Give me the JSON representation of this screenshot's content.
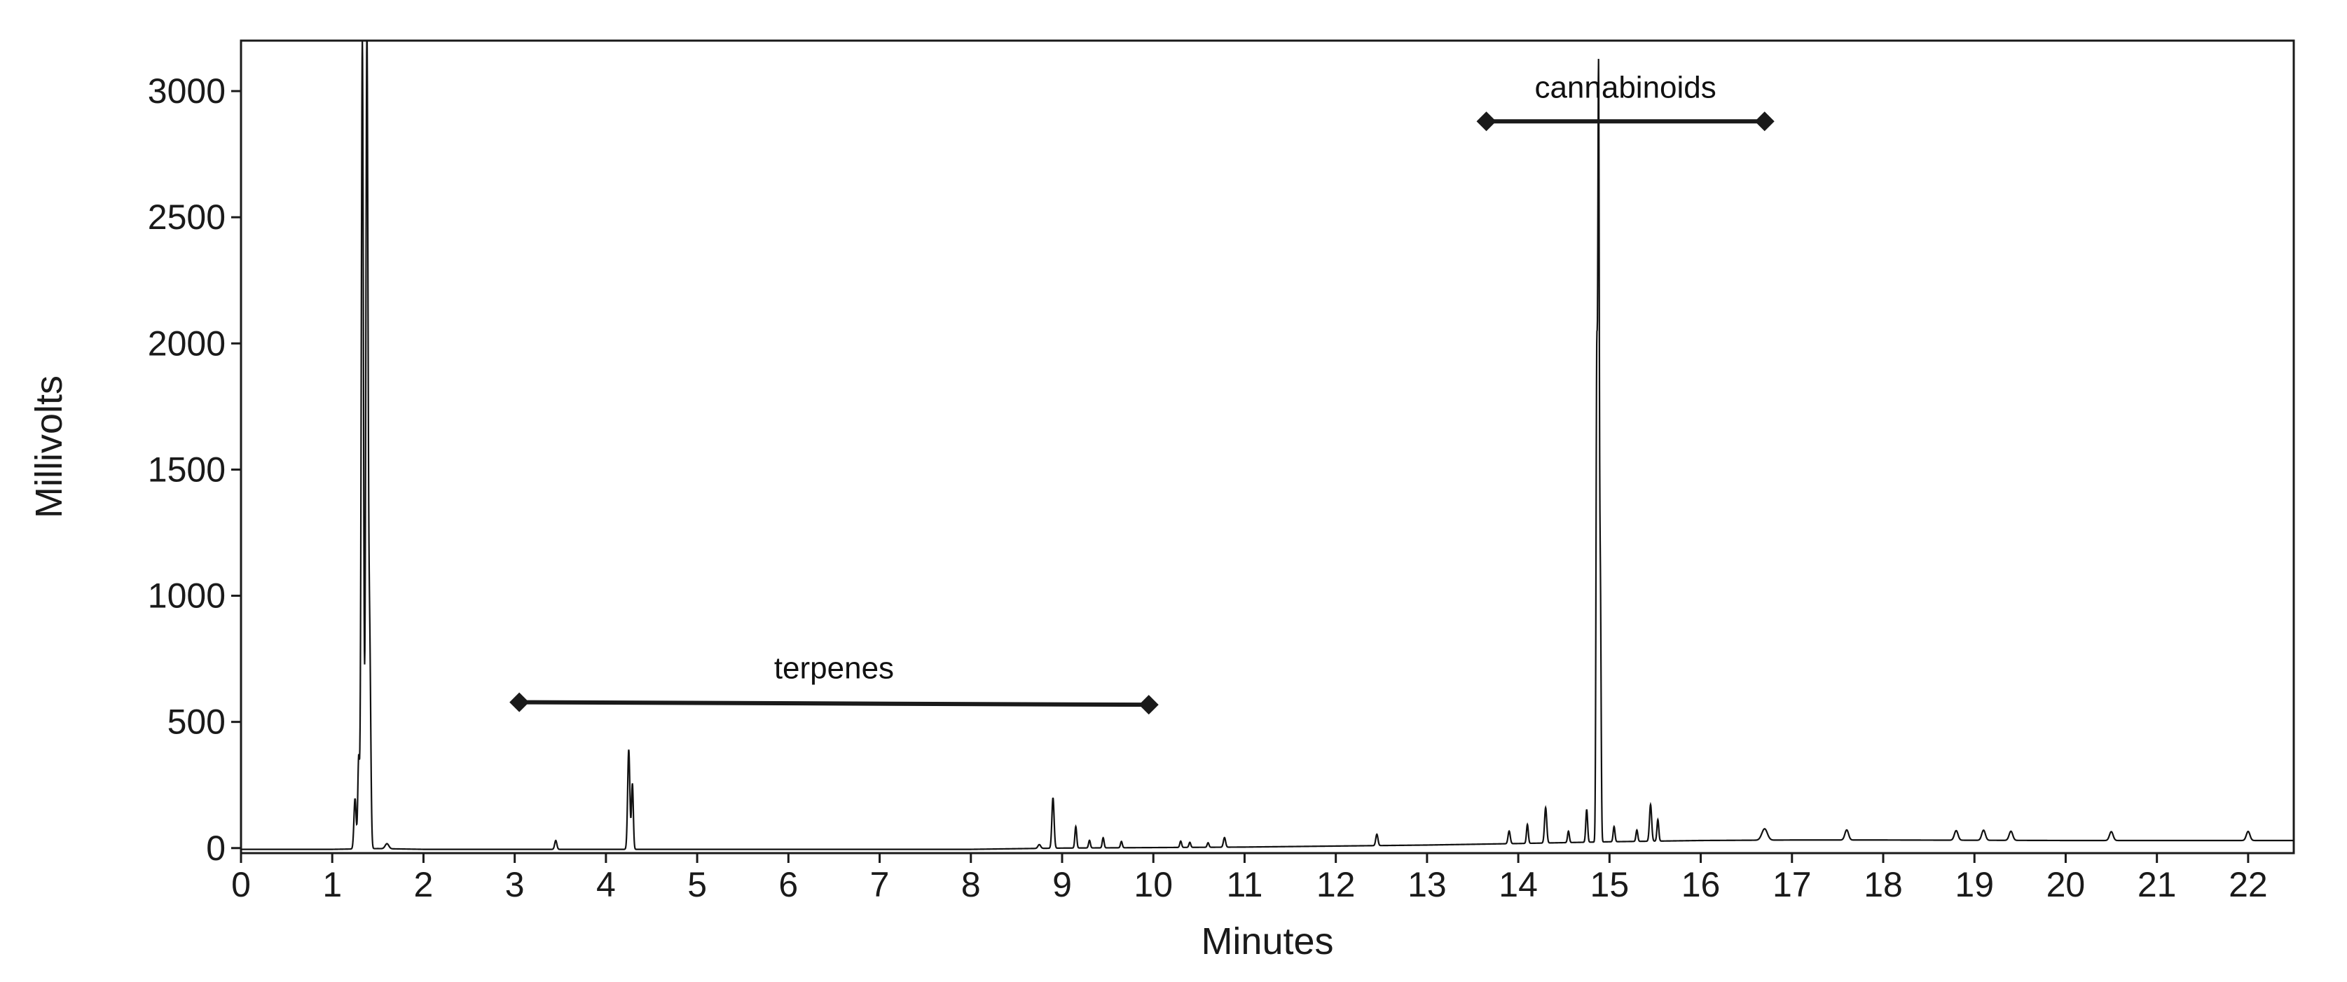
{
  "chart_data": {
    "type": "line",
    "title": "",
    "xlabel": "Minutes",
    "ylabel": "Millivolts",
    "xlim": [
      0,
      22.5
    ],
    "ylim": [
      -20,
      3200
    ],
    "x_ticks": [
      0,
      1,
      2,
      3,
      4,
      5,
      6,
      7,
      8,
      9,
      10,
      11,
      12,
      13,
      14,
      15,
      16,
      17,
      18,
      19,
      20,
      21,
      22
    ],
    "y_ticks": [
      0,
      500,
      1000,
      1500,
      2000,
      2500,
      3000
    ],
    "grid": false,
    "legend": "none",
    "series": [
      {
        "name": "chromatogram",
        "baseline": [
          [
            0,
            -5
          ],
          [
            1.0,
            -5
          ],
          [
            1.5,
            -2
          ],
          [
            2,
            -5
          ],
          [
            5,
            -5
          ],
          [
            8,
            -5
          ],
          [
            9,
            0
          ],
          [
            10,
            2
          ],
          [
            11,
            4
          ],
          [
            12,
            8
          ],
          [
            13,
            12
          ],
          [
            14,
            18
          ],
          [
            15,
            25
          ],
          [
            16,
            30
          ],
          [
            17,
            32
          ],
          [
            18,
            32
          ],
          [
            19,
            31
          ],
          [
            20,
            30
          ],
          [
            21,
            30
          ],
          [
            22,
            30
          ],
          [
            22.5,
            30
          ]
        ],
        "peaks": [
          {
            "x": 1.25,
            "y": 200,
            "w": 0.012
          },
          {
            "x": 1.29,
            "y": 360,
            "w": 0.01
          },
          {
            "x": 1.33,
            "y": 3200,
            "w": 0.012
          },
          {
            "x": 1.38,
            "y": 3200,
            "w": 0.012
          },
          {
            "x": 1.41,
            "y": 810,
            "w": 0.012
          },
          {
            "x": 1.6,
            "y": 20,
            "w": 0.02
          },
          {
            "x": 3.45,
            "y": 35,
            "w": 0.012
          },
          {
            "x": 4.25,
            "y": 395,
            "w": 0.012
          },
          {
            "x": 4.29,
            "y": 260,
            "w": 0.01
          },
          {
            "x": 8.75,
            "y": 15,
            "w": 0.015
          },
          {
            "x": 8.9,
            "y": 200,
            "w": 0.012
          },
          {
            "x": 9.15,
            "y": 85,
            "w": 0.01
          },
          {
            "x": 9.3,
            "y": 30,
            "w": 0.01
          },
          {
            "x": 9.45,
            "y": 40,
            "w": 0.01
          },
          {
            "x": 9.65,
            "y": 25,
            "w": 0.01
          },
          {
            "x": 10.3,
            "y": 25,
            "w": 0.01
          },
          {
            "x": 10.4,
            "y": 20,
            "w": 0.01
          },
          {
            "x": 10.6,
            "y": 18,
            "w": 0.01
          },
          {
            "x": 10.78,
            "y": 38,
            "w": 0.012
          },
          {
            "x": 12.45,
            "y": 45,
            "w": 0.012
          },
          {
            "x": 13.9,
            "y": 50,
            "w": 0.012
          },
          {
            "x": 14.1,
            "y": 75,
            "w": 0.01
          },
          {
            "x": 14.3,
            "y": 140,
            "w": 0.012
          },
          {
            "x": 14.55,
            "y": 45,
            "w": 0.01
          },
          {
            "x": 14.75,
            "y": 130,
            "w": 0.01
          },
          {
            "x": 14.86,
            "y": 1840,
            "w": 0.008
          },
          {
            "x": 14.88,
            "y": 2980,
            "w": 0.008
          },
          {
            "x": 14.9,
            "y": 970,
            "w": 0.008
          },
          {
            "x": 15.05,
            "y": 60,
            "w": 0.01
          },
          {
            "x": 15.3,
            "y": 45,
            "w": 0.01
          },
          {
            "x": 15.45,
            "y": 145,
            "w": 0.012
          },
          {
            "x": 15.53,
            "y": 85,
            "w": 0.01
          },
          {
            "x": 16.7,
            "y": 45,
            "w": 0.03
          },
          {
            "x": 17.6,
            "y": 40,
            "w": 0.02
          },
          {
            "x": 18.8,
            "y": 38,
            "w": 0.02
          },
          {
            "x": 19.1,
            "y": 40,
            "w": 0.02
          },
          {
            "x": 19.4,
            "y": 36,
            "w": 0.02
          },
          {
            "x": 20.5,
            "y": 35,
            "w": 0.02
          },
          {
            "x": 22.0,
            "y": 36,
            "w": 0.02
          }
        ]
      }
    ],
    "annotations": [
      {
        "label": "terpenes",
        "x_start": 3.05,
        "y_start": 578,
        "x_end": 9.95,
        "y_end": 568
      },
      {
        "label": "cannabinoids",
        "x_start": 13.65,
        "y_start": 2880,
        "x_end": 16.7,
        "y_end": 2880
      }
    ]
  }
}
